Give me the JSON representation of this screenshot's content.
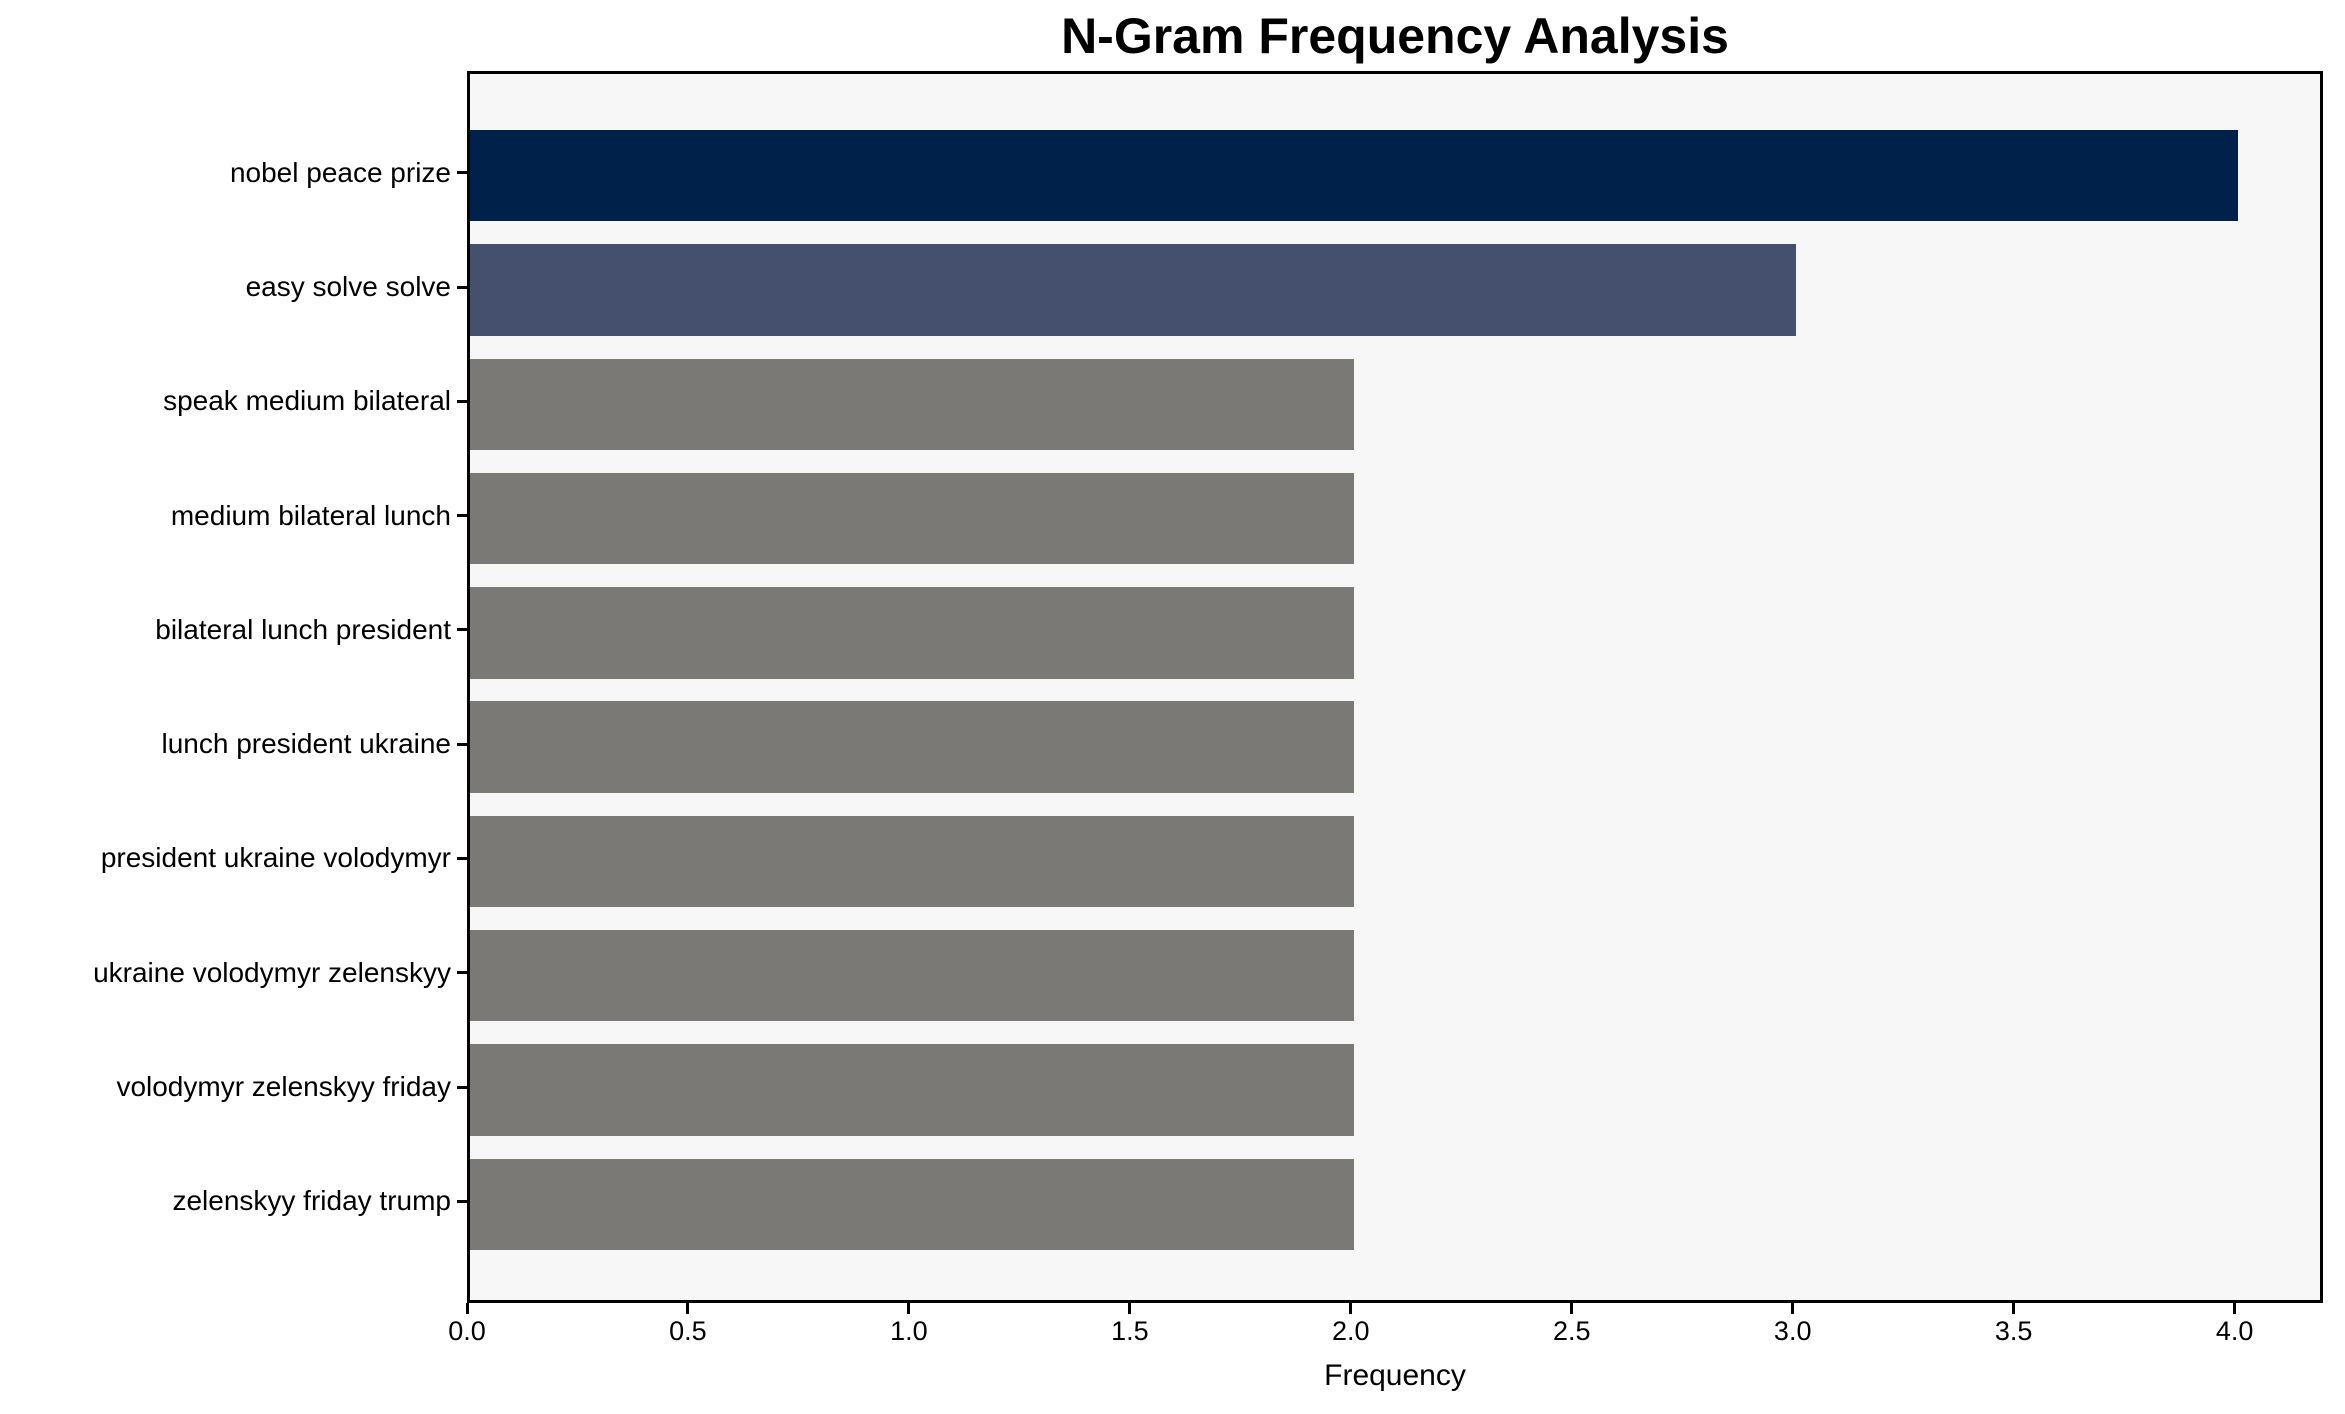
{
  "title": "N-Gram Frequency Analysis",
  "chart_data": {
    "type": "bar",
    "orientation": "horizontal",
    "title": "N-Gram Frequency Analysis",
    "xlabel": "Frequency",
    "ylabel": "",
    "categories": [
      "nobel peace prize",
      "easy solve solve",
      "speak medium bilateral",
      "medium bilateral lunch",
      "bilateral lunch president",
      "lunch president ukraine",
      "president ukraine volodymyr",
      "ukraine volodymyr zelenskyy",
      "volodymyr zelenskyy friday",
      "zelenskyy friday trump"
    ],
    "values": [
      4,
      3,
      2,
      2,
      2,
      2,
      2,
      2,
      2,
      2
    ],
    "bar_colors": [
      "#00224a",
      "#454f6e",
      "#7b7975",
      "#7b7975",
      "#7b7975",
      "#7b7975",
      "#7b7975",
      "#7b7975",
      "#7b7975",
      "#7b7975"
    ],
    "xlim": [
      0,
      4.2
    ],
    "x_ticks": [
      0,
      0.5,
      1,
      1.5,
      2,
      2.5,
      3,
      3.5,
      4
    ],
    "x_tick_labels": [
      "0.0",
      "0.5",
      "1.0",
      "1.5",
      "2.0",
      "2.5",
      "3.0",
      "3.5",
      "4.0"
    ],
    "grid": false,
    "legend": null,
    "plot_background": "#f7f7f7",
    "figure_background": "#ffffff",
    "spine_color": "#000000",
    "text_color": "#000000"
  }
}
